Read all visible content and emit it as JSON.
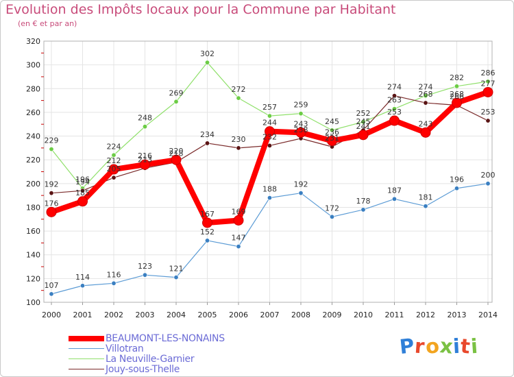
{
  "title": "Evolution des Impôts locaux pour la Commune par Habitant",
  "subtitle": "(en € et par an)",
  "logo_text": "Proxiti",
  "colors": {
    "title": "#c84b7a",
    "legend_text": "#6b6bd6",
    "grid": "#e4e4e4",
    "axis_tick_red": "#cc0000"
  },
  "chart_data": {
    "type": "line",
    "title": "Evolution des Impôts locaux pour la Commune par Habitant",
    "subtitle": "(en € et par an)",
    "xlabel": "",
    "ylabel": "",
    "x": [
      "2000",
      "2001",
      "2002",
      "2003",
      "2004",
      "2005",
      "2006",
      "2007",
      "2008",
      "2009",
      "2010",
      "2011",
      "2012",
      "2013",
      "2014"
    ],
    "ylim": [
      100,
      320
    ],
    "yticks": [
      100,
      120,
      140,
      160,
      180,
      200,
      220,
      240,
      260,
      280,
      300,
      320
    ],
    "grid": true,
    "legend_position": "bottom-left",
    "series": [
      {
        "name": "BEAUMONT-LES-NONAINS",
        "color": "#ff0000",
        "marker_color": "#ff0000",
        "width": "thick",
        "values": [
          176,
          185,
          212,
          216,
          220,
          167,
          169,
          244,
          243,
          236,
          241,
          253,
          243,
          268,
          277
        ]
      },
      {
        "name": "Villotran",
        "color": "#5b9bd5",
        "marker_color": "#3a7fc1",
        "width": "thin",
        "values": [
          107,
          114,
          116,
          123,
          121,
          152,
          147,
          188,
          192,
          172,
          178,
          187,
          181,
          196,
          200
        ]
      },
      {
        "name": "La Neuville-Garnier",
        "color": "#8fe06a",
        "marker_color": "#6ccc45",
        "width": "thin",
        "values": [
          229,
          196,
          224,
          248,
          269,
          302,
          272,
          257,
          259,
          245,
          252,
          263,
          274,
          282,
          286
        ]
      },
      {
        "name": "Jouy-sous-Thelle",
        "color": "#7a2a2a",
        "marker_color": "#5a1414",
        "width": "thin",
        "values": [
          192,
          194,
          205,
          213,
          218,
          234,
          230,
          232,
          238,
          231,
          245,
          274,
          268,
          266,
          253
        ]
      }
    ]
  }
}
